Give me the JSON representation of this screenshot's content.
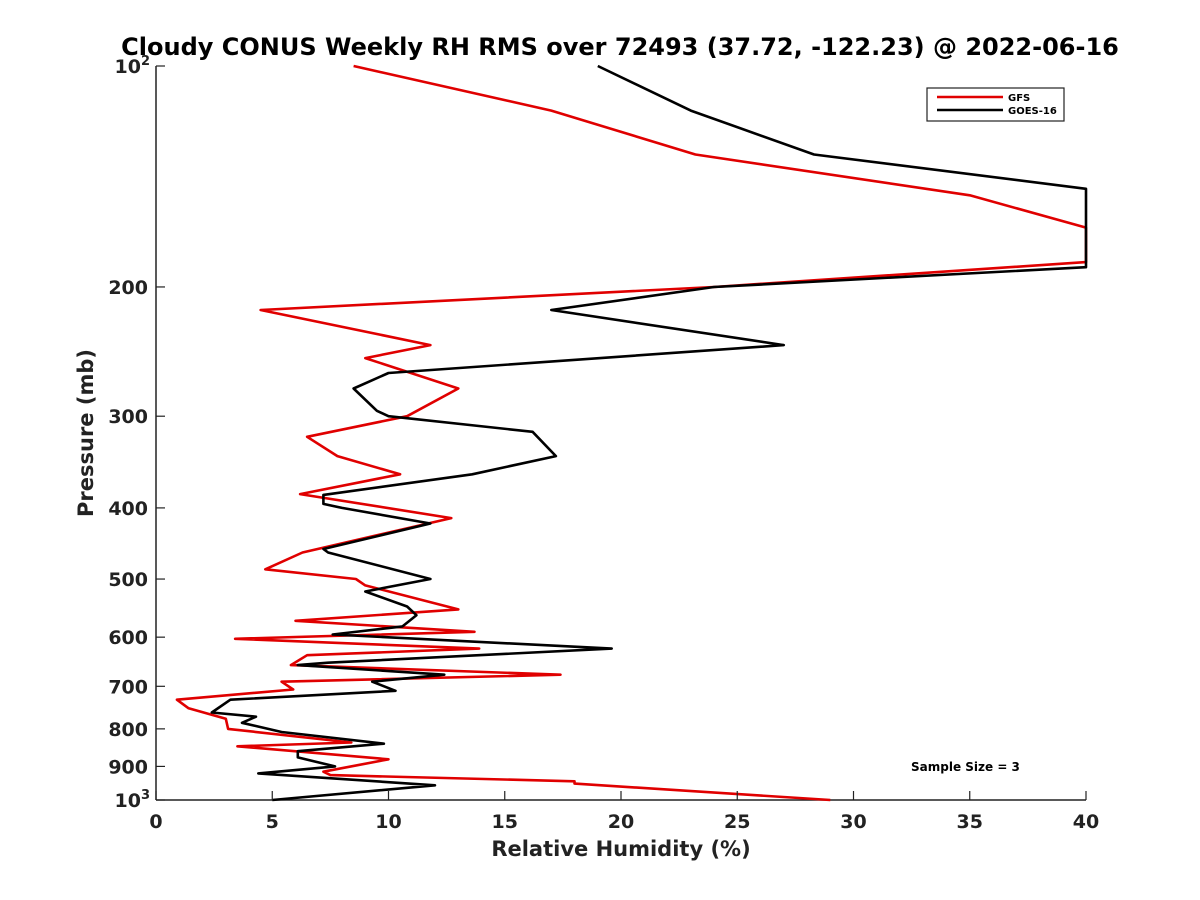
{
  "chart_data": {
    "type": "line",
    "title": "Cloudy CONUS Weekly RH RMS over 72493 (37.72, -122.23) @ 2022-06-16",
    "xlabel": "Relative Humidity (%)",
    "ylabel": "Pressure (mb)",
    "xlim": [
      0,
      40
    ],
    "ylim": [
      100,
      1000
    ],
    "y_scale": "log",
    "y_reversed": true,
    "grid": false,
    "legend_placement": "top-right",
    "x_ticks": [
      "0",
      "5",
      "10",
      "15",
      "20",
      "25",
      "30",
      "35",
      "40"
    ],
    "y_ticks": [
      {
        "value": 100,
        "label": "10",
        "sup": "2"
      },
      {
        "value": 200,
        "label": "200"
      },
      {
        "value": 300,
        "label": "300"
      },
      {
        "value": 400,
        "label": "400"
      },
      {
        "value": 500,
        "label": "500"
      },
      {
        "value": 600,
        "label": "600"
      },
      {
        "value": 700,
        "label": "700"
      },
      {
        "value": 800,
        "label": "800"
      },
      {
        "value": 900,
        "label": "900"
      },
      {
        "value": 1000,
        "label": "10",
        "sup": "3"
      }
    ],
    "annotation": "Sample Size = 3",
    "series": [
      {
        "name": "GFS",
        "color": "#e00000",
        "points": [
          [
            8.5,
            100
          ],
          [
            17,
            115
          ],
          [
            23.2,
            132
          ],
          [
            35,
            150
          ],
          [
            40,
            166
          ],
          [
            40,
            185
          ],
          [
            24,
            200
          ],
          [
            4.5,
            215
          ],
          [
            11.8,
            240
          ],
          [
            9,
            250
          ],
          [
            13,
            275
          ],
          [
            10.8,
            300
          ],
          [
            6.5,
            320
          ],
          [
            7.8,
            340
          ],
          [
            10.5,
            360
          ],
          [
            6.2,
            383
          ],
          [
            12.7,
            413
          ],
          [
            6.3,
            460
          ],
          [
            4.7,
            485
          ],
          [
            8.6,
            500
          ],
          [
            9.0,
            510
          ],
          [
            13.0,
            550
          ],
          [
            6.0,
            570
          ],
          [
            13.7,
            590
          ],
          [
            3.4,
            603
          ],
          [
            13.9,
            622
          ],
          [
            6.5,
            635
          ],
          [
            5.8,
            655
          ],
          [
            17.4,
            675
          ],
          [
            5.4,
            690
          ],
          [
            5.9,
            707
          ],
          [
            0.9,
            730
          ],
          [
            1.4,
            750
          ],
          [
            3.0,
            775
          ],
          [
            3.1,
            800
          ],
          [
            8.4,
            835
          ],
          [
            3.5,
            845
          ],
          [
            10.0,
            880
          ],
          [
            7.2,
            915
          ],
          [
            7.5,
            925
          ],
          [
            18,
            943
          ],
          [
            18,
            950
          ],
          [
            29,
            1000
          ]
        ]
      },
      {
        "name": "GOES-16",
        "color": "#000000",
        "points": [
          [
            19,
            100
          ],
          [
            23,
            115
          ],
          [
            28.3,
            132
          ],
          [
            40,
            147
          ],
          [
            40,
            188
          ],
          [
            24,
            200
          ],
          [
            17,
            215
          ],
          [
            27,
            240
          ],
          [
            10,
            262
          ],
          [
            8.5,
            275
          ],
          [
            9.5,
            295
          ],
          [
            10,
            300
          ],
          [
            16.2,
            315
          ],
          [
            17.2,
            340
          ],
          [
            13.6,
            360
          ],
          [
            7.2,
            384
          ],
          [
            7.2,
            395
          ],
          [
            8,
            400
          ],
          [
            11.8,
            420
          ],
          [
            7.2,
            455
          ],
          [
            7.4,
            460
          ],
          [
            11.8,
            500
          ],
          [
            9.0,
            520
          ],
          [
            10.8,
            545
          ],
          [
            11.2,
            560
          ],
          [
            10.6,
            580
          ],
          [
            7.6,
            595
          ],
          [
            19.6,
            622
          ],
          [
            7.4,
            650
          ],
          [
            6.1,
            655
          ],
          [
            12.4,
            675
          ],
          [
            9.3,
            690
          ],
          [
            10.3,
            710
          ],
          [
            3.2,
            730
          ],
          [
            2.4,
            760
          ],
          [
            4.3,
            770
          ],
          [
            3.7,
            785
          ],
          [
            5.4,
            808
          ],
          [
            9.8,
            838
          ],
          [
            6.1,
            858
          ],
          [
            6.1,
            875
          ],
          [
            7.7,
            900
          ],
          [
            4.4,
            920
          ],
          [
            12.0,
            955
          ],
          [
            5.0,
            1000
          ]
        ]
      }
    ]
  }
}
